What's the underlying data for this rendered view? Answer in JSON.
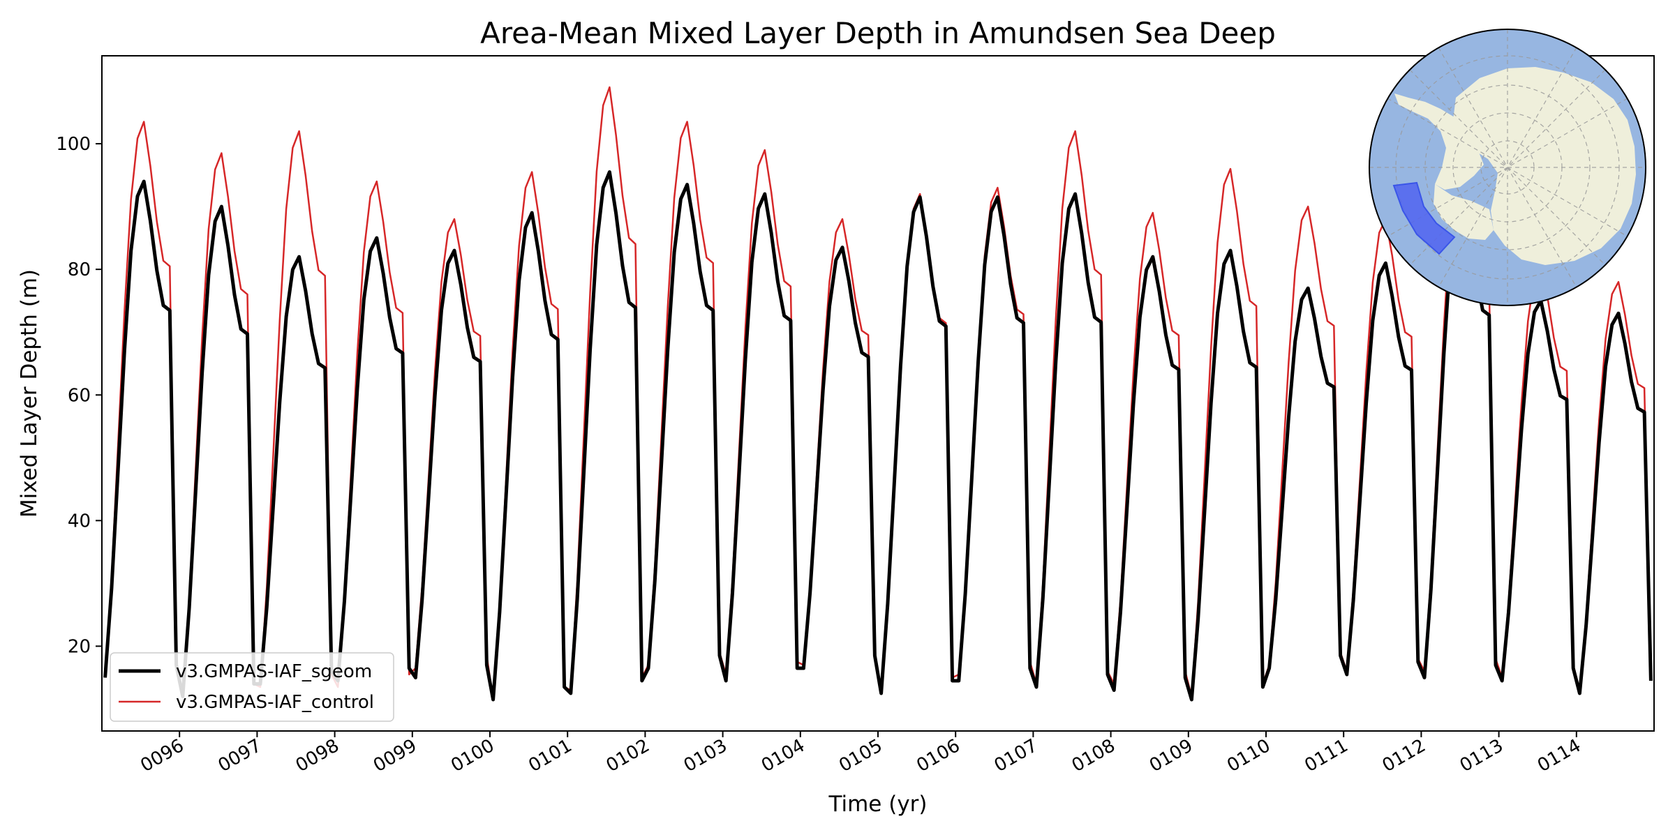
{
  "chart_data": {
    "type": "line",
    "title": "Area-Mean Mixed Layer Depth in Amundsen Sea Deep",
    "xlabel": "Time (yr)",
    "ylabel": "Mixed Layer Depth (m)",
    "xlim": [
      95.0,
      115.0
    ],
    "ylim": [
      6.5,
      114
    ],
    "x_ticks": [
      96,
      97,
      98,
      99,
      100,
      101,
      102,
      103,
      104,
      105,
      106,
      107,
      108,
      109,
      110,
      111,
      112,
      113,
      114
    ],
    "x_tick_labels": [
      "0096",
      "0097",
      "0098",
      "0099",
      "0100",
      "0101",
      "0102",
      "0103",
      "0104",
      "0105",
      "0106",
      "0107",
      "0108",
      "0109",
      "0110",
      "0111",
      "0112",
      "0113",
      "0114"
    ],
    "y_ticks": [
      20,
      40,
      60,
      80,
      100
    ],
    "y_tick_labels": [
      "20",
      "40",
      "60",
      "80",
      "100"
    ],
    "legend": "lower-left",
    "grid": false,
    "inset_map": "Antarctic polar map with the Amundsen Sea Deep region highlighted",
    "colors": {
      "ocean": "#97b6e1",
      "land": "#efefdb",
      "region": "#5064f0"
    },
    "series": [
      {
        "name": "v3.GMPAS-IAF_sgeom",
        "color": "#000000",
        "peaks": [
          94,
          90,
          82,
          85,
          83,
          89,
          95.5,
          93.5,
          92,
          83.5,
          91.5,
          91.5,
          92,
          82,
          83,
          77,
          81,
          93,
          75,
          73
        ],
        "troughs": [
          15,
          12,
          14,
          14.5,
          15,
          11.5,
          12.5,
          16.5,
          14.5,
          16.5,
          12.5,
          14.5,
          13.5,
          13,
          11.5,
          16.5,
          15.5,
          15,
          14.5,
          12.5
        ]
      },
      {
        "name": "v3.GMPAS-IAF_control",
        "color": "#d62728",
        "peaks": [
          103.5,
          98.5,
          102,
          94,
          88,
          95.5,
          109,
          103.5,
          99,
          88,
          92,
          93,
          102,
          89,
          96,
          90,
          88,
          99,
          81,
          78
        ],
        "troughs": [
          15,
          12,
          13.5,
          13.5,
          16.5,
          11.5,
          13,
          17,
          15.5,
          17,
          13,
          15.5,
          14,
          14,
          12,
          17,
          16,
          16,
          15,
          13
        ]
      }
    ]
  }
}
